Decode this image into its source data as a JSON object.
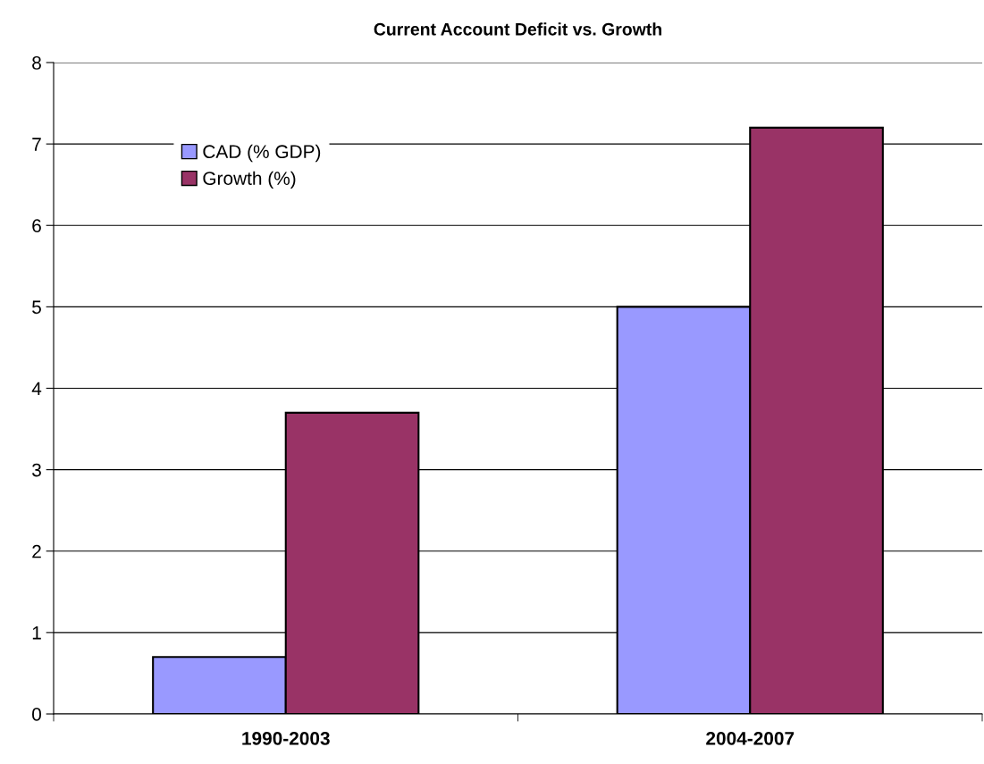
{
  "chart_data": {
    "type": "bar",
    "title": "Current Account Deficit vs. Growth",
    "categories": [
      "1990-2003",
      "2004-2007"
    ],
    "series": [
      {
        "name": "CAD (% GDP)",
        "color": "#9999ff",
        "values": [
          0.7,
          5.0
        ]
      },
      {
        "name": "Growth (%)",
        "color": "#993366",
        "values": [
          3.7,
          7.2
        ]
      }
    ],
    "ylim": [
      0,
      8
    ],
    "yticks": [
      0,
      1,
      2,
      3,
      4,
      5,
      6,
      7,
      8
    ],
    "grid": "y",
    "legend": "top left"
  }
}
